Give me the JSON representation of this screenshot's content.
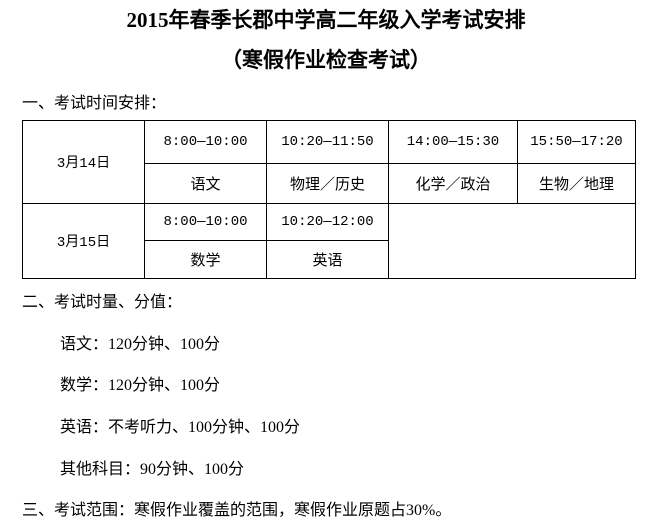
{
  "title": "2015年春季长郡中学高二年级入学考试安排",
  "subtitle": "（寒假作业检查考试）",
  "section1": {
    "heading": "一、考试时间安排："
  },
  "schedule": [
    {
      "date": "3月14日",
      "slots": [
        {
          "time": "8:00—10:00",
          "subject": "语文"
        },
        {
          "time": "10:20—11:50",
          "subject": "物理／历史"
        },
        {
          "time": "14:00—15:30",
          "subject": "化学／政治"
        },
        {
          "time": "15:50—17:20",
          "subject": "生物／地理"
        }
      ]
    },
    {
      "date": "3月15日",
      "slots": [
        {
          "time": "8:00—10:00",
          "subject": "数学"
        },
        {
          "time": "10:20—12:00",
          "subject": "英语"
        }
      ]
    }
  ],
  "section2": {
    "heading": "二、考试时量、分值：",
    "items": [
      "语文：120分钟、100分",
      "数学：120分钟、100分",
      "英语：不考听力、100分钟、100分",
      "其他科目：90分钟、100分"
    ]
  },
  "section3": {
    "heading": "三、考试范围：寒假作业覆盖的范围，寒假作业原题占30%。"
  }
}
